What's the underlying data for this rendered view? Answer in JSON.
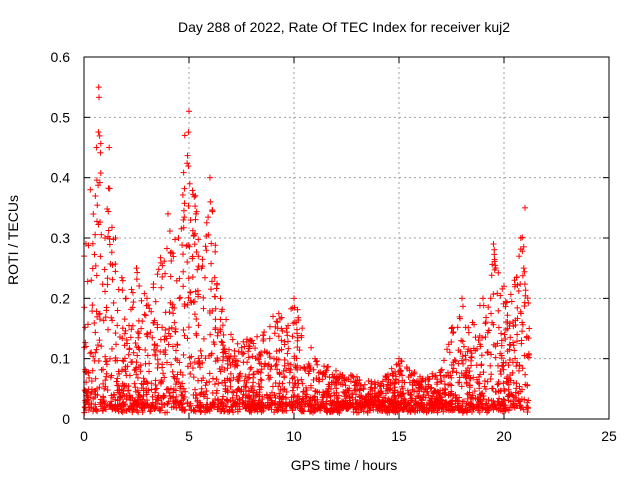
{
  "chart_data": {
    "type": "scatter",
    "title": "Day 288 of 2022, Rate Of TEC Index for receiver kuj2",
    "xlabel": "GPS time / hours",
    "ylabel": "ROTI / TECUs",
    "xlim": [
      0,
      25
    ],
    "ylim": [
      0,
      0.6
    ],
    "x_ticks": [
      "0",
      "5",
      "10",
      "15",
      "20",
      "25"
    ],
    "y_ticks": [
      "0",
      "0.1",
      "0.2",
      "0.3",
      "0.4",
      "0.5",
      "0.6"
    ],
    "grid": true,
    "marker": "+",
    "color": "#ff0000",
    "envelope": {
      "x": [
        0.0,
        0.3,
        0.6,
        0.7,
        1.0,
        1.2,
        1.5,
        2.0,
        2.5,
        3.0,
        3.5,
        4.0,
        4.5,
        4.8,
        5.0,
        5.3,
        5.6,
        6.0,
        6.5,
        7.0,
        8.0,
        9.0,
        10.0,
        11.0,
        12.0,
        13.0,
        14.0,
        15.0,
        16.0,
        17.0,
        17.5,
        18.0,
        18.5,
        19.0,
        19.5,
        20.0,
        20.5,
        20.8,
        21.0,
        21.2
      ],
      "y": [
        0.27,
        0.38,
        0.45,
        0.55,
        0.3,
        0.45,
        0.3,
        0.2,
        0.25,
        0.2,
        0.24,
        0.34,
        0.3,
        0.47,
        0.51,
        0.37,
        0.25,
        0.4,
        0.2,
        0.14,
        0.13,
        0.17,
        0.2,
        0.1,
        0.08,
        0.07,
        0.06,
        0.1,
        0.07,
        0.08,
        0.15,
        0.2,
        0.16,
        0.2,
        0.29,
        0.22,
        0.23,
        0.3,
        0.35,
        0.15
      ]
    }
  }
}
